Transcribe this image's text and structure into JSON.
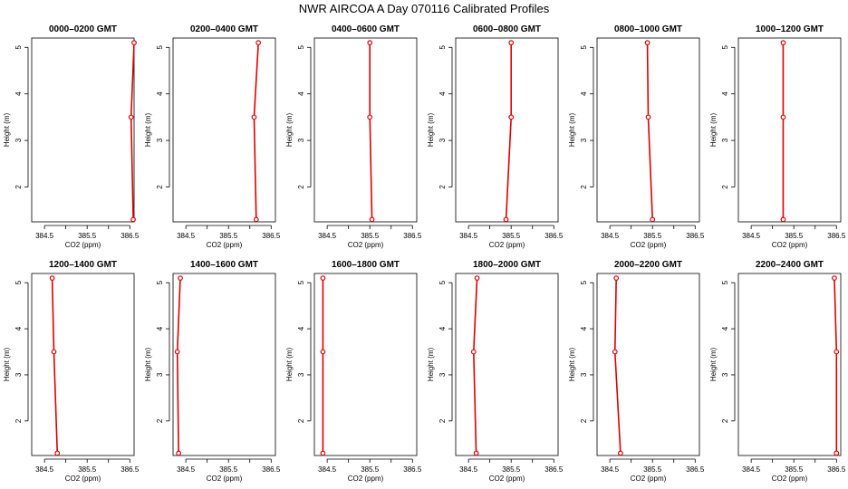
{
  "title": "NWR AIRCOA A  Day 070116  Calibrated Profiles",
  "colors": {
    "series": "#dd0000",
    "axis": "#000000"
  },
  "chart_data": [
    {
      "type": "line",
      "title": "0000–0200 GMT",
      "xlabel": "CO2 (ppm)",
      "ylabel": "Height (m)",
      "xlim": [
        384.2,
        386.6
      ],
      "ylim": [
        1.25,
        5.2
      ],
      "xticks": [
        "384.5",
        "385.5",
        "386.5"
      ],
      "yticks": [
        "2",
        "3",
        "4",
        "5"
      ],
      "x": [
        386.58,
        386.53,
        386.6
      ],
      "y": [
        1.3,
        3.5,
        5.1
      ]
    },
    {
      "type": "line",
      "title": "0200–0400 GMT",
      "xlabel": "CO2 (ppm)",
      "ylabel": "Height (m)",
      "xlim": [
        384.2,
        386.6
      ],
      "ylim": [
        1.25,
        5.2
      ],
      "xticks": [
        "384.5",
        "385.5",
        "386.5"
      ],
      "yticks": [
        "2",
        "3",
        "4",
        "5"
      ],
      "x": [
        386.15,
        386.1,
        386.2
      ],
      "y": [
        1.3,
        3.5,
        5.1
      ]
    },
    {
      "type": "line",
      "title": "0400–0600 GMT",
      "xlabel": "CO2 (ppm)",
      "ylabel": "Height (m)",
      "xlim": [
        384.2,
        386.6
      ],
      "ylim": [
        1.25,
        5.2
      ],
      "xticks": [
        "384.5",
        "385.5",
        "386.5"
      ],
      "yticks": [
        "2",
        "3",
        "4",
        "5"
      ],
      "x": [
        385.55,
        385.5,
        385.5
      ],
      "y": [
        1.3,
        3.5,
        5.1
      ]
    },
    {
      "type": "line",
      "title": "0600–0800 GMT",
      "xlabel": "CO2 (ppm)",
      "ylabel": "Height (m)",
      "xlim": [
        384.2,
        386.6
      ],
      "ylim": [
        1.25,
        5.2
      ],
      "xticks": [
        "384.5",
        "385.5",
        "386.5"
      ],
      "yticks": [
        "2",
        "3",
        "4",
        "5"
      ],
      "x": [
        385.38,
        385.5,
        385.5
      ],
      "y": [
        1.3,
        3.5,
        5.1
      ]
    },
    {
      "type": "line",
      "title": "0800–1000 GMT",
      "xlabel": "CO2 (ppm)",
      "ylabel": "Height (m)",
      "xlim": [
        384.2,
        386.6
      ],
      "ylim": [
        1.25,
        5.2
      ],
      "xticks": [
        "384.5",
        "385.5",
        "386.5"
      ],
      "yticks": [
        "2",
        "3",
        "4",
        "5"
      ],
      "x": [
        385.5,
        385.4,
        385.38
      ],
      "y": [
        1.3,
        3.5,
        5.1
      ]
    },
    {
      "type": "line",
      "title": "1000–1200 GMT",
      "xlabel": "CO2 (ppm)",
      "ylabel": "Height (m)",
      "xlim": [
        384.2,
        386.6
      ],
      "ylim": [
        1.25,
        5.2
      ],
      "xticks": [
        "384.5",
        "385.5",
        "386.5"
      ],
      "yticks": [
        "2",
        "3",
        "4",
        "5"
      ],
      "x": [
        385.25,
        385.25,
        385.25
      ],
      "y": [
        1.3,
        3.5,
        5.1
      ]
    },
    {
      "type": "line",
      "title": "1200–1400 GMT",
      "xlabel": "CO2 (ppm)",
      "ylabel": "Height (m)",
      "xlim": [
        384.2,
        386.6
      ],
      "ylim": [
        1.25,
        5.2
      ],
      "xticks": [
        "384.5",
        "385.5",
        "386.5"
      ],
      "yticks": [
        "2",
        "3",
        "4",
        "5"
      ],
      "x": [
        384.8,
        384.72,
        384.68
      ],
      "y": [
        1.3,
        3.5,
        5.1
      ]
    },
    {
      "type": "line",
      "title": "1400–1600 GMT",
      "xlabel": "CO2 (ppm)",
      "ylabel": "Height (m)",
      "xlim": [
        384.2,
        386.6
      ],
      "ylim": [
        1.25,
        5.2
      ],
      "xticks": [
        "384.5",
        "385.5",
        "386.5"
      ],
      "yticks": [
        "2",
        "3",
        "4",
        "5"
      ],
      "x": [
        384.33,
        384.3,
        384.37
      ],
      "y": [
        1.3,
        3.5,
        5.1
      ]
    },
    {
      "type": "line",
      "title": "1600–1800 GMT",
      "xlabel": "CO2 (ppm)",
      "ylabel": "Height (m)",
      "xlim": [
        384.2,
        386.6
      ],
      "ylim": [
        1.25,
        5.2
      ],
      "xticks": [
        "384.5",
        "385.5",
        "386.5"
      ],
      "yticks": [
        "2",
        "3",
        "4",
        "5"
      ],
      "x": [
        384.4,
        384.4,
        384.4
      ],
      "y": [
        1.3,
        3.5,
        5.1
      ]
    },
    {
      "type": "line",
      "title": "1800–2000 GMT",
      "xlabel": "CO2 (ppm)",
      "ylabel": "Height (m)",
      "xlim": [
        384.2,
        386.6
      ],
      "ylim": [
        1.25,
        5.2
      ],
      "xticks": [
        "384.5",
        "385.5",
        "386.5"
      ],
      "yticks": [
        "2",
        "3",
        "4",
        "5"
      ],
      "x": [
        384.68,
        384.62,
        384.7
      ],
      "y": [
        1.3,
        3.5,
        5.1
      ]
    },
    {
      "type": "line",
      "title": "2000–2200 GMT",
      "xlabel": "CO2 (ppm)",
      "ylabel": "Height (m)",
      "xlim": [
        384.2,
        386.6
      ],
      "ylim": [
        1.25,
        5.2
      ],
      "xticks": [
        "384.5",
        "385.5",
        "386.5"
      ],
      "yticks": [
        "2",
        "3",
        "4",
        "5"
      ],
      "x": [
        384.75,
        384.62,
        384.65
      ],
      "y": [
        1.3,
        3.5,
        5.1
      ]
    },
    {
      "type": "line",
      "title": "2200–2400 GMT",
      "xlabel": "CO2 (ppm)",
      "ylabel": "Height (m)",
      "xlim": [
        384.2,
        386.6
      ],
      "ylim": [
        1.25,
        5.2
      ],
      "xticks": [
        "384.5",
        "385.5",
        "386.5"
      ],
      "yticks": [
        "2",
        "3",
        "4",
        "5"
      ],
      "x": [
        386.5,
        386.5,
        386.45
      ],
      "y": [
        1.3,
        3.5,
        5.1
      ]
    }
  ]
}
